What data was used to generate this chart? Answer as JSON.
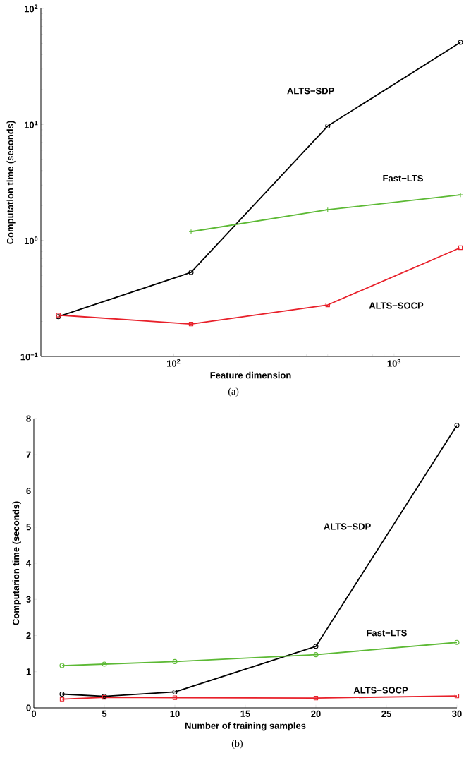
{
  "chart_data": [
    {
      "type": "line",
      "xlabel": "Feature dimension",
      "ylabel": "Computation time (seconds)",
      "log": "xy",
      "xlim": [
        25,
        2000
      ],
      "ylim": [
        0.1,
        100
      ],
      "xticks": [
        {
          "value": 100,
          "label": "10$^{2}$"
        },
        {
          "value": 1000,
          "label": "10$^{3}$"
        }
      ],
      "yticks": [
        {
          "value": 0.1,
          "label": "10$^{−1}$"
        },
        {
          "value": 1,
          "label": "10$^{0}$"
        },
        {
          "value": 10,
          "label": "10$^{1}$"
        },
        {
          "value": 100,
          "label": "10$^{2}$"
        }
      ],
      "annotations": [
        "(a)"
      ],
      "series": [
        {
          "name": "ALTS−SDP",
          "color": "#000000",
          "marker": "circle",
          "x": [
            30,
            120,
            500,
            2000
          ],
          "values": [
            0.22,
            0.53,
            9.7,
            51
          ]
        },
        {
          "name": "Fast−LTS",
          "color": "#5cb934",
          "marker": "cross",
          "x": [
            120,
            500,
            2000
          ],
          "values": [
            1.19,
            1.84,
            2.47
          ]
        },
        {
          "name": "ALTS−SOCP",
          "color": "#e8202a",
          "marker": "square",
          "x": [
            30,
            120,
            500,
            2000
          ],
          "values": [
            0.227,
            0.19,
            0.278,
            0.865
          ]
        }
      ]
    },
    {
      "type": "line",
      "xlabel": "Number of training samples",
      "ylabel": "Computarion time (seconds)",
      "xlim": [
        0,
        30
      ],
      "ylim": [
        0,
        8
      ],
      "xticks": [
        0,
        5,
        10,
        15,
        20,
        25,
        30
      ],
      "yticks": [
        0,
        1,
        2,
        3,
        4,
        5,
        6,
        7,
        8
      ],
      "annotations": [
        "(b)"
      ],
      "series": [
        {
          "name": "ALTS−SDP",
          "color": "#000000",
          "marker": "circle",
          "x": [
            2,
            5,
            10,
            20,
            30
          ],
          "values": [
            0.38,
            0.32,
            0.44,
            1.7,
            7.81
          ]
        },
        {
          "name": "Fast−LTS",
          "color": "#5cb934",
          "marker": "circle",
          "x": [
            2,
            5,
            10,
            20,
            30
          ],
          "values": [
            1.17,
            1.21,
            1.28,
            1.47,
            1.81
          ]
        },
        {
          "name": "ALTS−SOCP",
          "color": "#e8202a",
          "marker": "square",
          "x": [
            2,
            5,
            10,
            20,
            30
          ],
          "values": [
            0.24,
            0.29,
            0.28,
            0.27,
            0.33
          ]
        }
      ]
    }
  ]
}
